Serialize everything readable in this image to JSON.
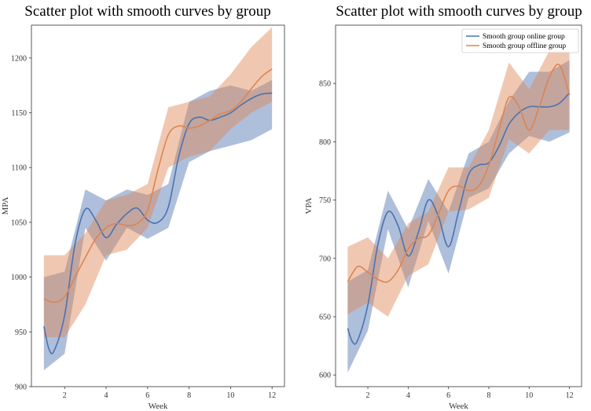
{
  "chart_data": [
    {
      "type": "line",
      "title": "Scatter plot with smooth curves by group",
      "xlabel": "Week",
      "ylabel": "MPA",
      "xlim": [
        0.4,
        12.6
      ],
      "ylim": [
        900,
        1230
      ],
      "xticks": [
        2,
        4,
        6,
        8,
        10,
        12
      ],
      "yticks": [
        900,
        950,
        1000,
        1050,
        1100,
        1150,
        1200
      ],
      "legend": null,
      "series": [
        {
          "name": "Smooth group online group",
          "color": "#4c72b0",
          "band_color": "#4c72b0",
          "x": [
            1,
            1.25,
            1.5,
            2,
            2.5,
            3,
            3.5,
            4,
            4.5,
            5,
            5.5,
            6,
            6.5,
            7,
            7.5,
            8,
            8.5,
            9,
            9.5,
            10,
            10.5,
            11,
            11.5,
            12
          ],
          "y": [
            955,
            934,
            933,
            965,
            1030,
            1062,
            1052,
            1036,
            1048,
            1058,
            1063,
            1052,
            1050,
            1064,
            1110,
            1140,
            1146,
            1143,
            1146,
            1150,
            1157,
            1163,
            1167,
            1168
          ],
          "band_x": [
            1,
            2,
            3,
            4,
            5,
            6,
            7,
            8,
            9,
            10,
            11,
            12
          ],
          "band_upper": [
            1000,
            1005,
            1080,
            1070,
            1080,
            1075,
            1085,
            1160,
            1170,
            1175,
            1170,
            1180
          ],
          "band_lower": [
            915,
            930,
            1045,
            1015,
            1045,
            1035,
            1045,
            1105,
            1115,
            1120,
            1125,
            1135
          ]
        },
        {
          "name": "Smooth group offline group",
          "color": "#dd8452",
          "band_color": "#dd8452",
          "x": [
            1,
            1.5,
            2,
            2.5,
            3,
            3.5,
            4,
            4.5,
            5,
            5.5,
            6,
            6.5,
            7,
            7.5,
            8,
            8.5,
            9,
            9.5,
            10,
            10.5,
            11,
            11.5,
            12
          ],
          "y": [
            980,
            977,
            982,
            1000,
            1018,
            1035,
            1045,
            1049,
            1047,
            1049,
            1061,
            1098,
            1130,
            1138,
            1136,
            1138,
            1143,
            1149,
            1152,
            1160,
            1172,
            1183,
            1190
          ],
          "band_x": [
            1,
            2,
            3,
            4,
            5,
            6,
            7,
            8,
            9,
            10,
            11,
            12
          ],
          "band_upper": [
            1020,
            1020,
            1040,
            1070,
            1075,
            1085,
            1155,
            1160,
            1165,
            1185,
            1210,
            1228
          ],
          "band_lower": [
            945,
            945,
            975,
            1020,
            1025,
            1045,
            1100,
            1110,
            1115,
            1135,
            1150,
            1160
          ]
        }
      ]
    },
    {
      "type": "line",
      "title": "Scatter plot with smooth curves by group",
      "xlabel": "Week",
      "ylabel": "VPA",
      "xlim": [
        0.4,
        12.6
      ],
      "ylim": [
        590,
        900
      ],
      "xticks": [
        2,
        4,
        6,
        8,
        10,
        12
      ],
      "yticks": [
        600,
        650,
        700,
        750,
        800,
        850
      ],
      "legend": "top-right",
      "series": [
        {
          "name": "Smooth group online group",
          "color": "#4c72b0",
          "band_color": "#4c72b0",
          "x": [
            1,
            1.25,
            1.5,
            2,
            2.5,
            3,
            3.5,
            4,
            4.5,
            5,
            5.5,
            6,
            6.5,
            7,
            7.5,
            8,
            8.5,
            9,
            9.5,
            10,
            10.5,
            11,
            11.5,
            12
          ],
          "y": [
            640,
            628,
            630,
            660,
            712,
            740,
            728,
            702,
            722,
            750,
            736,
            710,
            740,
            772,
            780,
            782,
            796,
            815,
            825,
            830,
            830,
            830,
            833,
            842
          ],
          "band_x": [
            1,
            2,
            3,
            4,
            5,
            6,
            7,
            8,
            9,
            10,
            11,
            12
          ],
          "band_upper": [
            680,
            690,
            758,
            725,
            768,
            740,
            790,
            800,
            835,
            860,
            860,
            870
          ],
          "band_lower": [
            602,
            638,
            725,
            675,
            732,
            687,
            752,
            760,
            790,
            805,
            800,
            808
          ]
        },
        {
          "name": "Smooth group offline group",
          "color": "#dd8452",
          "band_color": "#dd8452",
          "x": [
            1,
            1.5,
            2,
            2.5,
            3,
            3.5,
            4,
            4.5,
            5,
            5.5,
            6,
            6.5,
            7,
            7.5,
            8,
            8.5,
            9,
            9.5,
            10,
            10.5,
            11,
            11.5,
            12
          ],
          "y": [
            680,
            693,
            688,
            682,
            680,
            690,
            708,
            717,
            720,
            738,
            758,
            762,
            758,
            762,
            780,
            810,
            838,
            830,
            810,
            830,
            855,
            866,
            840
          ],
          "band_x": [
            1,
            2,
            3,
            4,
            5,
            6,
            7,
            8,
            9,
            10,
            11,
            12
          ],
          "band_upper": [
            710,
            718,
            700,
            730,
            740,
            778,
            778,
            810,
            868,
            845,
            878,
            878
          ],
          "band_lower": [
            652,
            662,
            650,
            685,
            695,
            740,
            742,
            752,
            802,
            790,
            810,
            810
          ]
        }
      ]
    }
  ]
}
